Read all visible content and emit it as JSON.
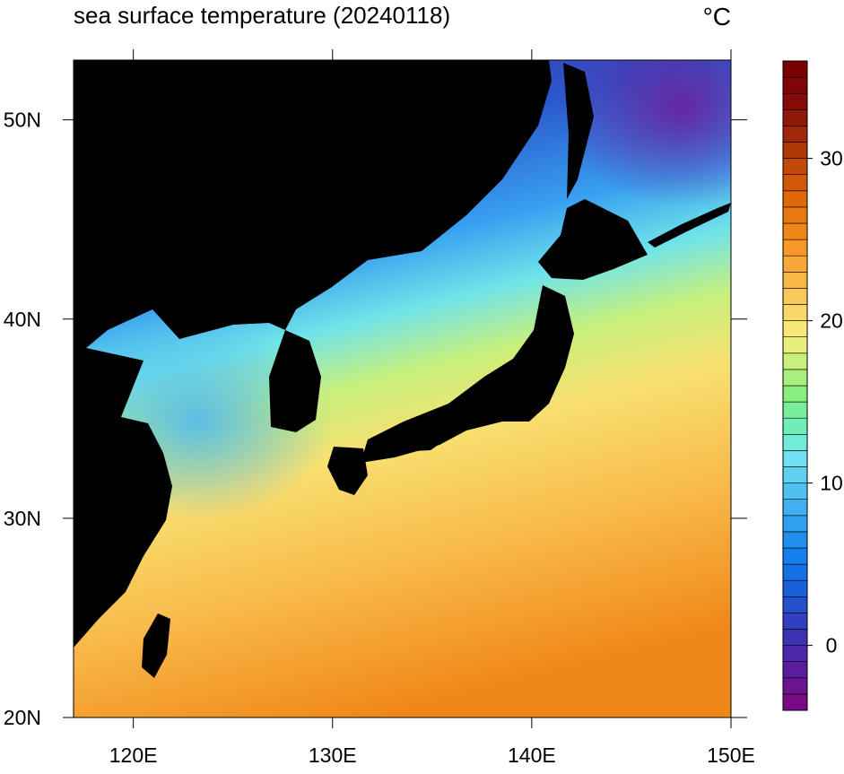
{
  "chart_data": {
    "type": "contour-map",
    "title": "sea surface temperature (20240118)",
    "unit": "°C",
    "xlim": [
      117,
      150
    ],
    "xticks": [
      {
        "value": 120,
        "label": "120E"
      },
      {
        "value": 130,
        "label": "130E"
      },
      {
        "value": 140,
        "label": "140E"
      },
      {
        "value": 150,
        "label": "150E"
      }
    ],
    "ylim": [
      20,
      53
    ],
    "yticks": [
      {
        "value": 20,
        "label": "20N"
      },
      {
        "value": 30,
        "label": "30N"
      },
      {
        "value": 40,
        "label": "40N"
      },
      {
        "value": 50,
        "label": "50N"
      }
    ],
    "colorbar": {
      "clim": [
        -4,
        36
      ],
      "ticks": [
        0,
        10,
        20,
        30
      ],
      "colors": [
        "#7a0a84",
        "#6a1490",
        "#5a1e9c",
        "#4a28a8",
        "#3c32b4",
        "#3040c0",
        "#2450cc",
        "#1a60d8",
        "#1470e4",
        "#1480ec",
        "#2090f0",
        "#30a0f0",
        "#40b0f0",
        "#50c0f0",
        "#60d0f0",
        "#70e0f0",
        "#70ecd8",
        "#70eeb8",
        "#78ee98",
        "#88ee80",
        "#a8f07c",
        "#c8f07c",
        "#e8f07c",
        "#f8e878",
        "#f8d868",
        "#f8c858",
        "#f8b848",
        "#f8a838",
        "#f89828",
        "#f08818",
        "#e87810",
        "#e06808",
        "#d05808",
        "#c04808",
        "#b03808",
        "#a02808",
        "#901808",
        "#840c08",
        "#800408",
        "#7a0000"
      ]
    }
  }
}
